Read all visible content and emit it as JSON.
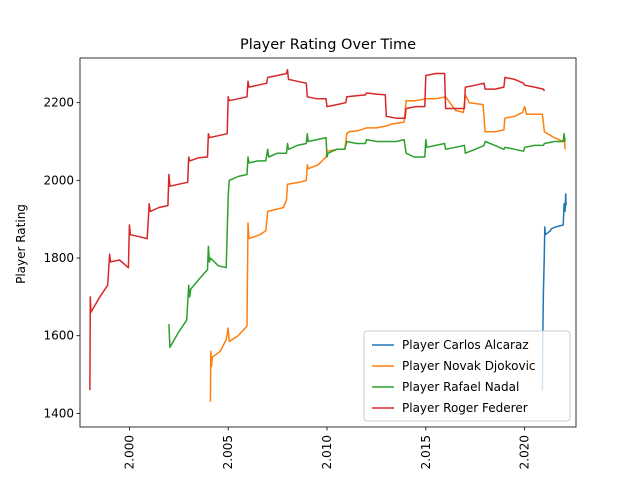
{
  "chart_data": {
    "type": "line",
    "title": "Player Rating Over Time",
    "xlabel": "",
    "ylabel": "Player Rating",
    "xlim": [
      1997.5,
      2022.6
    ],
    "ylim": [
      1365,
      2315
    ],
    "x_ticks": [
      2000,
      2005,
      2010,
      2015,
      2020
    ],
    "x_tick_labels": [
      "2.000",
      "2.005",
      "2.010",
      "2.015",
      "2.020"
    ],
    "y_ticks": [
      1400,
      1600,
      1800,
      2000,
      2200
    ],
    "y_tick_labels": [
      "1400",
      "1600",
      "1800",
      "2000",
      "2200"
    ],
    "grid": false,
    "legend_position": "lower-right",
    "series": [
      {
        "name": "Player Carlos Alcaraz",
        "color": "#1f77b4",
        "points": [
          [
            2020.9,
            1460
          ],
          [
            2020.92,
            1600
          ],
          [
            2020.95,
            1710
          ],
          [
            2020.97,
            1750
          ],
          [
            2021.0,
            1820
          ],
          [
            2021.02,
            1880
          ],
          [
            2021.05,
            1860
          ],
          [
            2021.3,
            1870
          ],
          [
            2021.35,
            1875
          ],
          [
            2021.55,
            1880
          ],
          [
            2021.95,
            1885
          ],
          [
            2022.0,
            1940
          ],
          [
            2022.05,
            1920
          ],
          [
            2022.08,
            1965
          ],
          [
            2022.1,
            1935
          ]
        ]
      },
      {
        "name": "Player Novak Djokovic",
        "color": "#ff7f0e",
        "points": [
          [
            2004.1,
            1430
          ],
          [
            2004.12,
            1560
          ],
          [
            2004.15,
            1520
          ],
          [
            2004.2,
            1545
          ],
          [
            2004.6,
            1560
          ],
          [
            2004.9,
            1590
          ],
          [
            2005.0,
            1620
          ],
          [
            2005.05,
            1585
          ],
          [
            2005.5,
            1600
          ],
          [
            2005.95,
            1625
          ],
          [
            2006.0,
            1890
          ],
          [
            2006.05,
            1850
          ],
          [
            2006.6,
            1860
          ],
          [
            2006.9,
            1870
          ],
          [
            2007.0,
            1920
          ],
          [
            2007.4,
            1925
          ],
          [
            2007.8,
            1930
          ],
          [
            2007.95,
            1950
          ],
          [
            2008.0,
            1990
          ],
          [
            2008.6,
            1995
          ],
          [
            2008.95,
            2000
          ],
          [
            2009.0,
            2040
          ],
          [
            2009.05,
            2030
          ],
          [
            2009.55,
            2040
          ],
          [
            2009.95,
            2060
          ],
          [
            2010.0,
            2075
          ],
          [
            2010.5,
            2080
          ],
          [
            2010.9,
            2080
          ],
          [
            2011.0,
            2120
          ],
          [
            2011.1,
            2125
          ],
          [
            2011.6,
            2128
          ],
          [
            2012.0,
            2135
          ],
          [
            2012.5,
            2135
          ],
          [
            2013.0,
            2140
          ],
          [
            2013.3,
            2145
          ],
          [
            2013.9,
            2150
          ],
          [
            2014.0,
            2205
          ],
          [
            2014.5,
            2205
          ],
          [
            2015.0,
            2210
          ],
          [
            2015.5,
            2210
          ],
          [
            2016.0,
            2215
          ],
          [
            2016.5,
            2180
          ],
          [
            2016.9,
            2175
          ],
          [
            2017.0,
            2220
          ],
          [
            2017.2,
            2200
          ],
          [
            2017.9,
            2195
          ],
          [
            2018.0,
            2125
          ],
          [
            2018.5,
            2125
          ],
          [
            2018.95,
            2130
          ],
          [
            2019.0,
            2160
          ],
          [
            2019.5,
            2165
          ],
          [
            2019.9,
            2175
          ],
          [
            2020.0,
            2190
          ],
          [
            2020.1,
            2170
          ],
          [
            2020.9,
            2170
          ],
          [
            2021.0,
            2125
          ],
          [
            2021.5,
            2110
          ],
          [
            2021.95,
            2100
          ],
          [
            2022.0,
            2115
          ],
          [
            2022.05,
            2080
          ]
        ]
      },
      {
        "name": "Player Rafael Nadal",
        "color": "#2ca02c",
        "points": [
          [
            2002.0,
            1630
          ],
          [
            2002.05,
            1570
          ],
          [
            2002.5,
            1610
          ],
          [
            2002.9,
            1640
          ],
          [
            2003.0,
            1730
          ],
          [
            2003.05,
            1700
          ],
          [
            2003.1,
            1720
          ],
          [
            2003.6,
            1750
          ],
          [
            2003.95,
            1770
          ],
          [
            2004.0,
            1830
          ],
          [
            2004.05,
            1790
          ],
          [
            2004.1,
            1800
          ],
          [
            2004.5,
            1780
          ],
          [
            2004.9,
            1775
          ],
          [
            2005.0,
            1960
          ],
          [
            2005.05,
            2000
          ],
          [
            2005.5,
            2010
          ],
          [
            2005.95,
            2015
          ],
          [
            2006.0,
            2060
          ],
          [
            2006.05,
            2045
          ],
          [
            2006.5,
            2050
          ],
          [
            2006.9,
            2050
          ],
          [
            2007.0,
            2080
          ],
          [
            2007.05,
            2060
          ],
          [
            2007.5,
            2070
          ],
          [
            2007.95,
            2070
          ],
          [
            2008.0,
            2095
          ],
          [
            2008.05,
            2080
          ],
          [
            2008.5,
            2090
          ],
          [
            2008.95,
            2095
          ],
          [
            2009.0,
            2120
          ],
          [
            2009.05,
            2100
          ],
          [
            2009.5,
            2105
          ],
          [
            2009.95,
            2110
          ],
          [
            2010.0,
            2060
          ],
          [
            2010.05,
            2070
          ],
          [
            2010.5,
            2080
          ],
          [
            2010.9,
            2080
          ],
          [
            2011.0,
            2100
          ],
          [
            2011.5,
            2095
          ],
          [
            2011.95,
            2095
          ],
          [
            2012.0,
            2105
          ],
          [
            2012.5,
            2100
          ],
          [
            2013.0,
            2100
          ],
          [
            2013.5,
            2100
          ],
          [
            2013.9,
            2105
          ],
          [
            2014.0,
            2070
          ],
          [
            2014.4,
            2060
          ],
          [
            2014.95,
            2060
          ],
          [
            2015.0,
            2105
          ],
          [
            2015.05,
            2085
          ],
          [
            2015.5,
            2090
          ],
          [
            2015.95,
            2095
          ],
          [
            2016.0,
            2080
          ],
          [
            2016.5,
            2085
          ],
          [
            2016.95,
            2090
          ],
          [
            2017.0,
            2070
          ],
          [
            2017.5,
            2080
          ],
          [
            2017.95,
            2090
          ],
          [
            2018.0,
            2100
          ],
          [
            2018.5,
            2090
          ],
          [
            2018.95,
            2080
          ],
          [
            2019.0,
            2085
          ],
          [
            2019.5,
            2080
          ],
          [
            2019.95,
            2075
          ],
          [
            2020.0,
            2085
          ],
          [
            2020.5,
            2090
          ],
          [
            2020.95,
            2090
          ],
          [
            2021.0,
            2095
          ],
          [
            2021.5,
            2100
          ],
          [
            2021.95,
            2100
          ],
          [
            2022.0,
            2120
          ],
          [
            2022.05,
            2100
          ]
        ]
      },
      {
        "name": "Player Roger Federer",
        "color": "#d62728",
        "points": [
          [
            1998.0,
            1460
          ],
          [
            1998.02,
            1700
          ],
          [
            1998.05,
            1660
          ],
          [
            1998.5,
            1700
          ],
          [
            1998.9,
            1730
          ],
          [
            1999.0,
            1810
          ],
          [
            1999.05,
            1790
          ],
          [
            1999.5,
            1795
          ],
          [
            1999.95,
            1775
          ],
          [
            2000.0,
            1885
          ],
          [
            2000.05,
            1860
          ],
          [
            2000.5,
            1855
          ],
          [
            2000.9,
            1850
          ],
          [
            2001.0,
            1940
          ],
          [
            2001.05,
            1920
          ],
          [
            2001.5,
            1930
          ],
          [
            2001.95,
            1935
          ],
          [
            2002.0,
            2015
          ],
          [
            2002.05,
            1985
          ],
          [
            2002.5,
            1990
          ],
          [
            2002.95,
            1995
          ],
          [
            2003.0,
            2060
          ],
          [
            2003.05,
            2050
          ],
          [
            2003.5,
            2058
          ],
          [
            2003.95,
            2060
          ],
          [
            2004.0,
            2120
          ],
          [
            2004.05,
            2110
          ],
          [
            2004.5,
            2115
          ],
          [
            2004.95,
            2120
          ],
          [
            2005.0,
            2215
          ],
          [
            2005.05,
            2205
          ],
          [
            2005.5,
            2210
          ],
          [
            2005.95,
            2215
          ],
          [
            2006.0,
            2255
          ],
          [
            2006.05,
            2240
          ],
          [
            2006.5,
            2245
          ],
          [
            2006.95,
            2250
          ],
          [
            2007.0,
            2265
          ],
          [
            2007.5,
            2270
          ],
          [
            2007.95,
            2275
          ],
          [
            2008.0,
            2285
          ],
          [
            2008.05,
            2260
          ],
          [
            2008.5,
            2255
          ],
          [
            2008.95,
            2250
          ],
          [
            2009.0,
            2215
          ],
          [
            2009.5,
            2210
          ],
          [
            2009.95,
            2210
          ],
          [
            2010.0,
            2190
          ],
          [
            2010.5,
            2195
          ],
          [
            2010.95,
            2200
          ],
          [
            2011.0,
            2215
          ],
          [
            2011.5,
            2218
          ],
          [
            2011.95,
            2220
          ],
          [
            2012.0,
            2225
          ],
          [
            2012.5,
            2222
          ],
          [
            2012.95,
            2220
          ],
          [
            2013.0,
            2165
          ],
          [
            2013.5,
            2160
          ],
          [
            2013.95,
            2160
          ],
          [
            2014.0,
            2185
          ],
          [
            2014.5,
            2190
          ],
          [
            2014.95,
            2190
          ],
          [
            2015.0,
            2270
          ],
          [
            2015.5,
            2275
          ],
          [
            2015.95,
            2275
          ],
          [
            2016.0,
            2185
          ],
          [
            2016.5,
            2185
          ],
          [
            2016.95,
            2185
          ],
          [
            2017.0,
            2240
          ],
          [
            2017.5,
            2245
          ],
          [
            2017.95,
            2250
          ],
          [
            2018.0,
            2235
          ],
          [
            2018.5,
            2235
          ],
          [
            2018.95,
            2240
          ],
          [
            2019.0,
            2265
          ],
          [
            2019.5,
            2260
          ],
          [
            2019.95,
            2250
          ],
          [
            2020.0,
            2245
          ],
          [
            2020.5,
            2240
          ],
          [
            2020.95,
            2235
          ],
          [
            2021.0,
            2230
          ]
        ]
      }
    ]
  }
}
